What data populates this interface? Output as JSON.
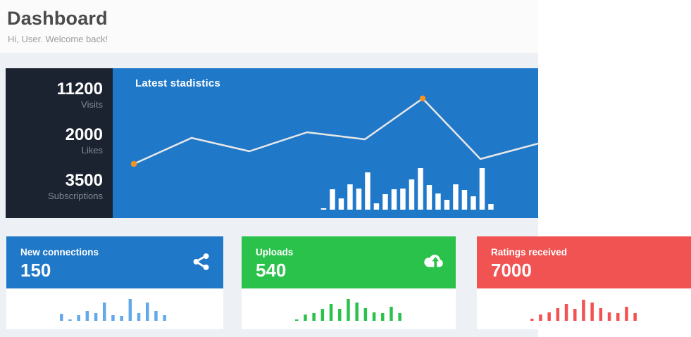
{
  "header": {
    "title": "Dashboard",
    "subtitle": "Hi, User. Welcome back!"
  },
  "stats_panel": {
    "background": "#1b2330",
    "items": [
      {
        "value": "11200",
        "label": "Visits"
      },
      {
        "value": "2000",
        "label": "Likes"
      },
      {
        "value": "3500",
        "label": "Subscriptions"
      }
    ]
  },
  "statistics_panel": {
    "title": "Latest stadistics",
    "background": "#2078c8"
  },
  "chart_data": [
    {
      "id": "visits-line",
      "type": "line",
      "title": "Latest stadistics",
      "x": [
        0,
        1,
        2,
        3,
        4,
        5,
        6,
        7
      ],
      "values": [
        77,
        114,
        95,
        122,
        112,
        170,
        84,
        106
      ],
      "highlight_points": [
        0,
        5
      ],
      "line_color": "#e8e8e8",
      "point_color": "#f5941e",
      "grid": false,
      "legend": "none",
      "axes": "hidden"
    },
    {
      "id": "visits-bars",
      "type": "bar",
      "values": [
        2,
        29,
        16,
        36,
        30,
        53,
        9,
        22,
        29,
        30,
        43,
        59,
        35,
        23,
        14,
        36,
        28,
        19,
        59,
        8
      ],
      "bar_color": "#ffffff",
      "grid": false,
      "axes": "hidden"
    },
    {
      "id": "connections-spark",
      "type": "bar",
      "values": [
        10,
        2,
        8,
        14,
        11,
        26,
        8,
        7,
        31,
        11,
        26,
        14,
        8
      ],
      "bar_color": "#63a8e8",
      "grid": false,
      "axes": "hidden"
    },
    {
      "id": "uploads-spark",
      "type": "bar",
      "values": [
        2,
        9,
        11,
        17,
        24,
        17,
        31,
        26,
        18,
        12,
        11,
        20,
        11
      ],
      "bar_color": "#2bc24c",
      "grid": false,
      "axes": "hidden"
    },
    {
      "id": "ratings-spark",
      "type": "bar",
      "values": [
        3,
        9,
        12,
        18,
        24,
        17,
        30,
        26,
        18,
        12,
        11,
        20,
        11
      ],
      "bar_color": "#f15353",
      "grid": false,
      "axes": "hidden"
    }
  ],
  "cards": [
    {
      "label": "New connections",
      "value": "150",
      "color": "#2078c8",
      "bar_color": "#63a8e8",
      "icon": "share-icon"
    },
    {
      "label": "Uploads",
      "value": "540",
      "color": "#2bc24c",
      "bar_color": "#2bc24c",
      "icon": "cloud-upload-icon"
    },
    {
      "label": "Ratings received",
      "value": "7000",
      "color": "#f15353",
      "bar_color": "#f15353",
      "icon": null
    }
  ]
}
